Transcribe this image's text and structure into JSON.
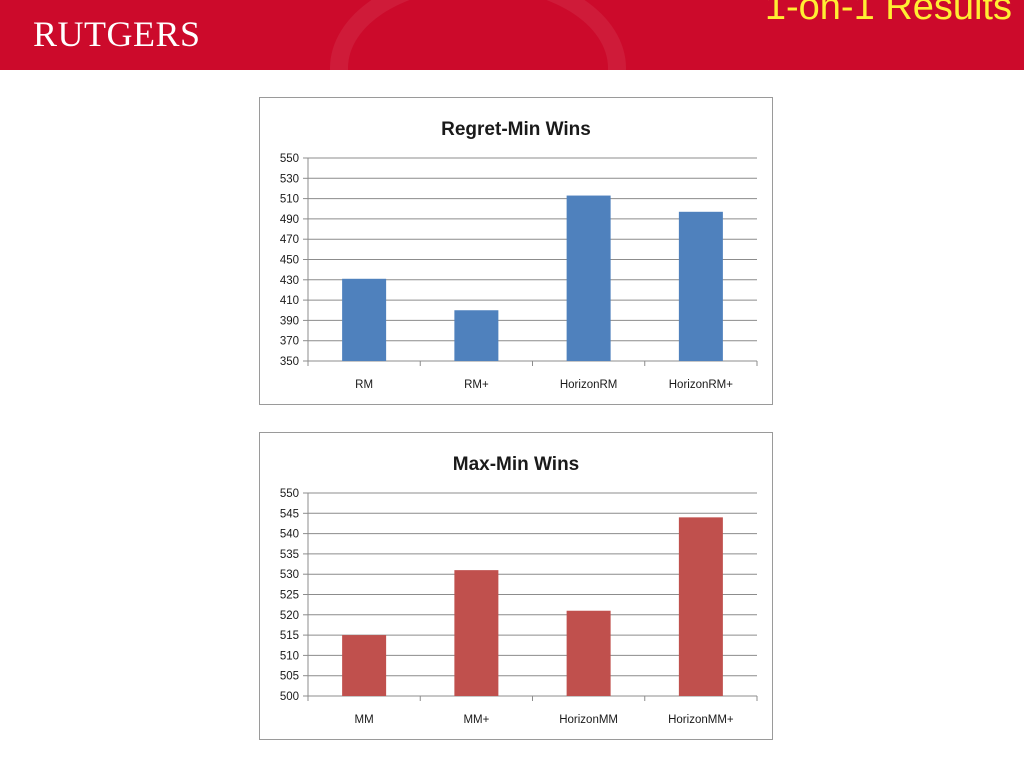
{
  "header": {
    "logo_text": "RUTGERS",
    "title": "1-on-1 Results",
    "background_color": "#cc0a2b",
    "title_color": "#ffee33"
  },
  "chart_data": [
    {
      "type": "bar",
      "title": "Regret-Min Wins",
      "categories": [
        "RM",
        "RM+",
        "HorizonRM",
        "HorizonRM+"
      ],
      "values": [
        431,
        400,
        513,
        497
      ],
      "ylim": [
        350,
        550
      ],
      "yticks": [
        350,
        370,
        390,
        410,
        430,
        450,
        470,
        490,
        510,
        530,
        550
      ],
      "grid": true,
      "legend": "none",
      "color": "#4f81bd"
    },
    {
      "type": "bar",
      "title": "Max-Min Wins",
      "categories": [
        "MM",
        "MM+",
        "HorizonMM",
        "HorizonMM+"
      ],
      "values": [
        515,
        531,
        521,
        544
      ],
      "ylim": [
        500,
        550
      ],
      "yticks": [
        500,
        505,
        510,
        515,
        520,
        525,
        530,
        535,
        540,
        545,
        550
      ],
      "grid": true,
      "legend": "none",
      "color": "#c0504d"
    }
  ]
}
